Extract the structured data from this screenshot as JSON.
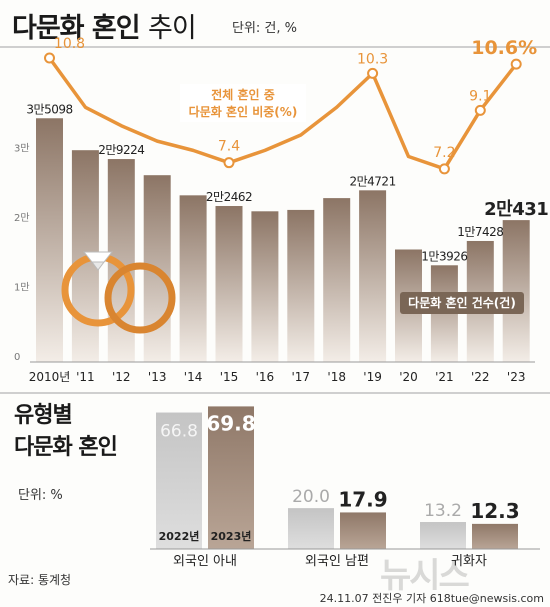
{
  "header": {
    "title_bold": "다문화 혼인",
    "title_light": "추이",
    "unit": "단위: 건, %"
  },
  "section2": {
    "title_line1": "유형별",
    "title_line2": "다문화 혼인",
    "unit": "단위: %"
  },
  "footer": {
    "source": "자료: 통계청",
    "credit": "24.11.07 전진우 기자 618tue@newsis.com",
    "watermark": "뉴시스"
  },
  "colors": {
    "bar_brown": "#9b8473",
    "bar_gray": "#c8c8c8",
    "line_orange": "#e8943a",
    "label_bg": "#7a6656"
  },
  "chart_data": [
    {
      "type": "bar",
      "categories": [
        "2010년",
        "'11",
        "'12",
        "'13",
        "'14",
        "'15",
        "'16",
        "'17",
        "'18",
        "'19",
        "'20",
        "'21",
        "'22",
        "'23"
      ],
      "values": [
        35098,
        30500,
        29224,
        26900,
        24000,
        22462,
        21700,
        21900,
        23600,
        24721,
        16200,
        13926,
        17428,
        20431
      ],
      "value_labels": [
        "3만5098",
        "",
        "2만9224",
        "",
        "",
        "2만2462",
        "",
        "",
        "",
        "2만4721",
        "",
        "1만3926",
        "1만7428",
        "2만431"
      ],
      "yticks": [
        "0",
        "1만",
        "2만",
        "3만"
      ],
      "ylim": [
        0,
        36000
      ],
      "legend": "다문화 혼인 건수(건)",
      "line_series": {
        "legend_line1": "전체 혼인 중",
        "legend_line2": "다문화 혼인 비중(%)",
        "values": [
          10.8,
          9.2,
          8.6,
          8.1,
          7.8,
          7.4,
          7.8,
          8.3,
          9.2,
          10.3,
          7.6,
          7.2,
          9.1,
          10.6
        ],
        "value_labels": [
          "10.8",
          "",
          "",
          "",
          "",
          "7.4",
          "",
          "",
          "",
          "10.3",
          "",
          "7.2",
          "9.1",
          "10.6%"
        ]
      }
    },
    {
      "type": "bar",
      "categories": [
        "외국인 아내",
        "외국인 남편",
        "귀화자"
      ],
      "series": [
        {
          "name": "2022년",
          "values": [
            66.8,
            20.0,
            13.2
          ]
        },
        {
          "name": "2023년",
          "values": [
            69.8,
            17.9,
            12.3
          ]
        }
      ],
      "ylim": [
        0,
        70
      ]
    }
  ]
}
